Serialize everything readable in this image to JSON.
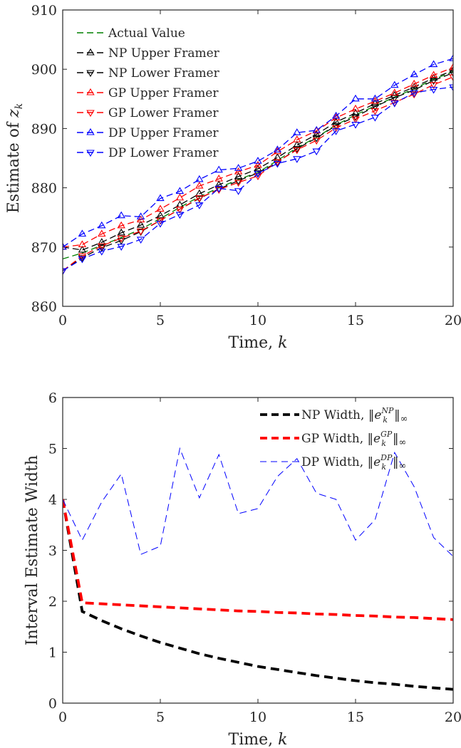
{
  "chart_data": [
    {
      "type": "line",
      "xlabel": "Time, ",
      "xlabel_var": "k",
      "ylabel": "Estimate of ",
      "ylabel_var": "z",
      "ylabel_sub": "k",
      "xlim": [
        0,
        20
      ],
      "ylim": [
        860,
        910
      ],
      "xticks": [
        0,
        5,
        10,
        15,
        20
      ],
      "yticks": [
        860,
        870,
        880,
        890,
        900,
        910
      ],
      "legend_position": "top-left",
      "x": [
        0,
        1,
        2,
        3,
        4,
        5,
        6,
        7,
        8,
        9,
        10,
        11,
        12,
        13,
        14,
        15,
        16,
        17,
        18,
        19,
        20
      ],
      "series": [
        {
          "name": "Actual Value",
          "color": "#008000",
          "dash": "dashed",
          "marker": "none",
          "values": [
            868,
            869,
            870.3,
            871.6,
            873,
            874.8,
            876.7,
            878.5,
            880,
            881.4,
            882.6,
            884.6,
            886.8,
            888.5,
            890.6,
            892.3,
            893.8,
            895.3,
            896.7,
            898.3,
            899.6
          ]
        },
        {
          "name": "NP Upper Framer",
          "color": "#000000",
          "dash": "dashed",
          "marker": "triangle-up",
          "values": [
            870,
            869.5,
            870.8,
            872.4,
            873.7,
            875.3,
            877.1,
            879,
            880.5,
            881.9,
            883.2,
            885.1,
            887.2,
            889,
            891.1,
            892.6,
            894.2,
            895.6,
            897,
            898.5,
            899.8
          ]
        },
        {
          "name": "NP Lower Framer",
          "color": "#000000",
          "dash": "dashed",
          "marker": "triangle-down",
          "values": [
            866,
            868.2,
            869.9,
            871.1,
            872.6,
            874.5,
            876.4,
            878.2,
            879.8,
            881.2,
            882.5,
            884.3,
            886.6,
            888.4,
            890.5,
            892,
            893.7,
            895.2,
            896.5,
            898.1,
            899.4
          ]
        },
        {
          "name": "GP Upper Framer",
          "color": "#ff0000",
          "dash": "dashed",
          "marker": "triangle-up",
          "values": [
            870,
            870.4,
            872.2,
            873.6,
            874.6,
            876.4,
            878.3,
            880.3,
            881.5,
            882.7,
            883.8,
            886.1,
            888.1,
            889.6,
            891.8,
            893.3,
            894.6,
            896,
            897.5,
            899,
            900.3
          ]
        },
        {
          "name": "GP Lower Framer",
          "color": "#ff0000",
          "dash": "dashed",
          "marker": "triangle-down",
          "values": [
            866,
            868.5,
            870.2,
            871.5,
            872.7,
            874.5,
            876.4,
            878.3,
            879.7,
            880.9,
            882,
            884.4,
            886.4,
            888,
            890.1,
            891.6,
            893,
            894.4,
            895.8,
            897.4,
            898.7
          ]
        },
        {
          "name": "DP Upper Framer",
          "color": "#0000ff",
          "dash": "dashed",
          "marker": "triangle-up",
          "values": [
            870,
            872.2,
            873.6,
            875.3,
            875.1,
            878.2,
            879.4,
            881.4,
            883,
            883.3,
            884.5,
            886.4,
            889.3,
            889.7,
            892.1,
            895,
            895,
            897.3,
            899.1,
            900.8,
            901.8
          ]
        },
        {
          "name": "DP Lower Framer",
          "color": "#0000ff",
          "dash": "dashed",
          "marker": "triangle-down",
          "values": [
            866,
            868,
            869.3,
            870.1,
            871.3,
            874,
            875.5,
            877.1,
            879.9,
            879.5,
            882.4,
            884.1,
            884.9,
            886.2,
            889.6,
            890.7,
            891.9,
            894.3,
            896,
            896.6,
            897
          ]
        }
      ]
    },
    {
      "type": "line",
      "xlabel": "Time, ",
      "xlabel_var": "k",
      "ylabel": "Interval Estimate Width",
      "xlim": [
        0,
        20
      ],
      "ylim": [
        0,
        6
      ],
      "xticks": [
        0,
        5,
        10,
        15,
        20
      ],
      "yticks": [
        0,
        1,
        2,
        3,
        4,
        5,
        6
      ],
      "legend_position": "top-right",
      "x": [
        0,
        1,
        2,
        3,
        4,
        5,
        6,
        7,
        8,
        9,
        10,
        11,
        12,
        13,
        14,
        15,
        16,
        17,
        18,
        19,
        20
      ],
      "series": [
        {
          "name": "NP Width, ",
          "norm_sub": "k",
          "norm_sup": "NP",
          "norm_tail": "∞",
          "color": "#000000",
          "dash": "heavy-dashed",
          "values": [
            4,
            1.8,
            1.62,
            1.46,
            1.32,
            1.19,
            1.08,
            0.97,
            0.88,
            0.8,
            0.72,
            0.66,
            0.6,
            0.54,
            0.49,
            0.44,
            0.4,
            0.37,
            0.33,
            0.3,
            0.27
          ]
        },
        {
          "name": "GP Width, ",
          "norm_sub": "k",
          "norm_sup": "GP",
          "norm_tail": "∞",
          "color": "#ff0000",
          "dash": "heavy-dashed",
          "values": [
            4,
            1.97,
            1.95,
            1.93,
            1.91,
            1.89,
            1.87,
            1.85,
            1.83,
            1.81,
            1.8,
            1.78,
            1.77,
            1.75,
            1.74,
            1.72,
            1.71,
            1.69,
            1.68,
            1.66,
            1.64
          ]
        },
        {
          "name": "DP Width, ",
          "norm_sub": "k",
          "norm_sup": "DP",
          "norm_tail": "∞",
          "color": "#0000ff",
          "dash": "thin-dashed",
          "values": [
            4,
            3.2,
            3.95,
            4.5,
            2.92,
            3.08,
            5,
            4.03,
            4.88,
            3.72,
            3.82,
            4.45,
            4.8,
            4.12,
            4,
            3.2,
            3.6,
            4.92,
            4.25,
            3.25,
            2.88
          ]
        }
      ]
    }
  ]
}
